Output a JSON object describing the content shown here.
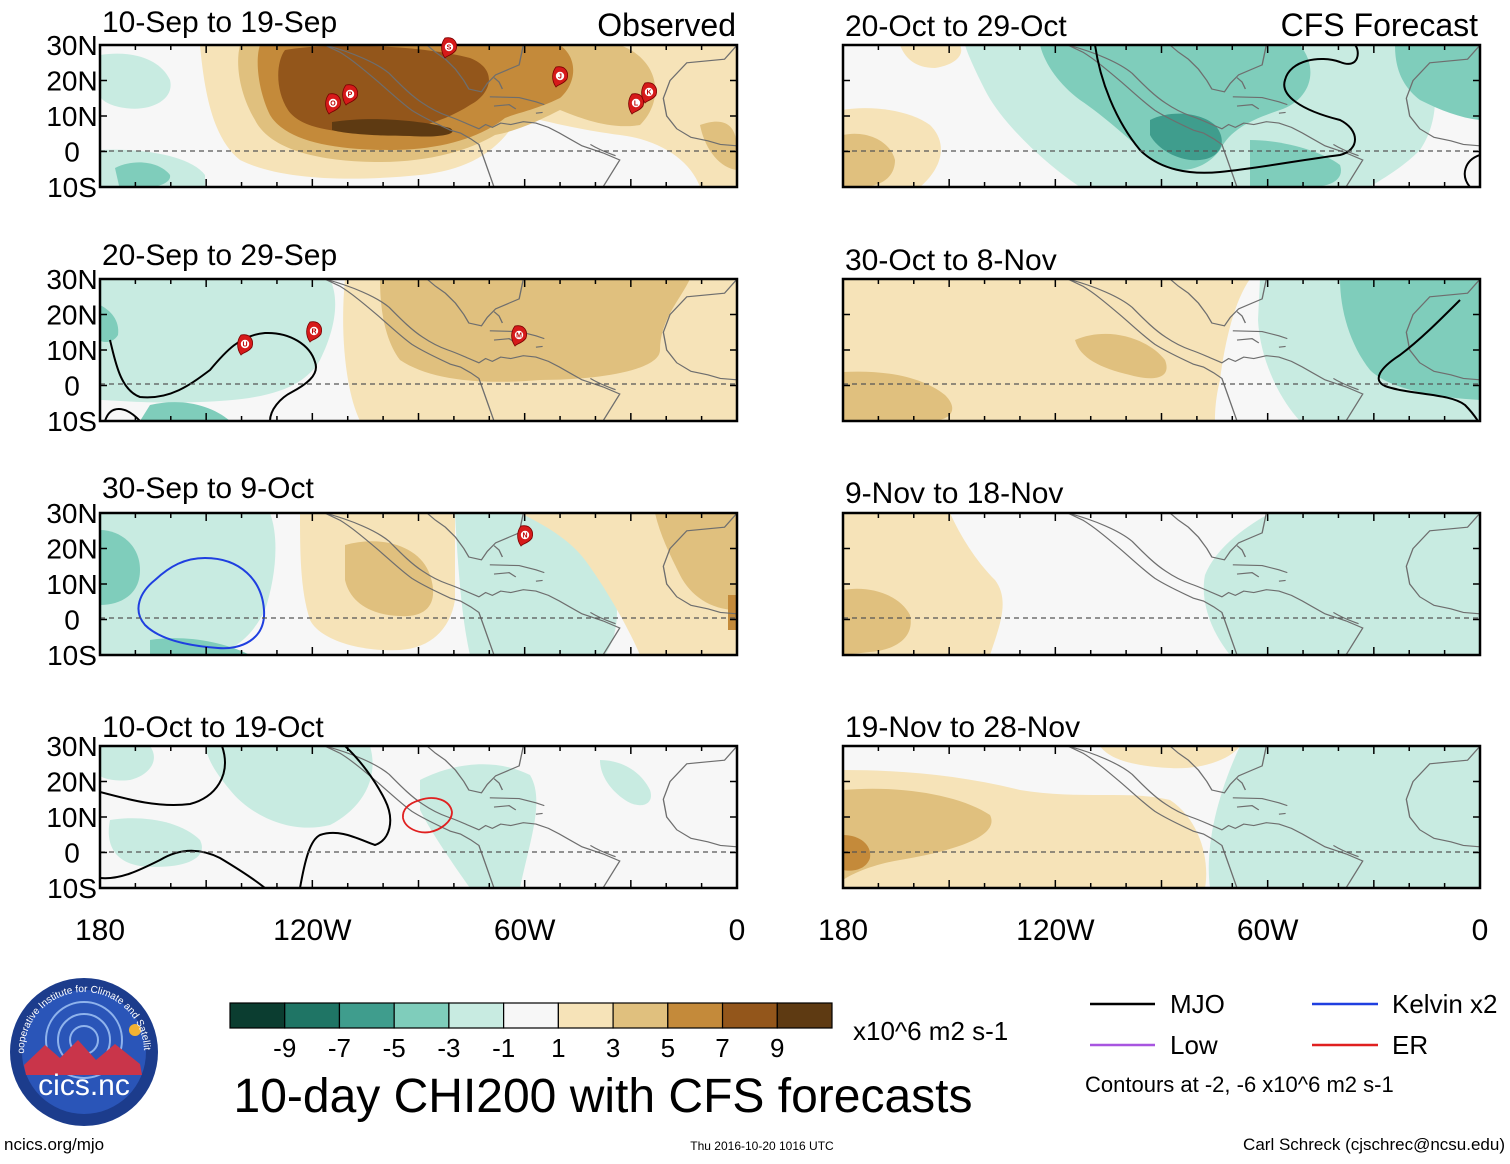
{
  "column_headers": {
    "observed": "Observed",
    "forecast": "CFS Forecast"
  },
  "panels": [
    {
      "id": "obs1",
      "column": "observed",
      "period": "10-Sep to 19-Sep",
      "storms": [
        "O",
        "P",
        "J",
        "L",
        "K",
        "S"
      ]
    },
    {
      "id": "obs2",
      "column": "observed",
      "period": "20-Sep to 29-Sep",
      "storms": [
        "U",
        "R",
        "M"
      ]
    },
    {
      "id": "obs3",
      "column": "observed",
      "period": "30-Sep to 9-Oct",
      "storms": [
        "N"
      ]
    },
    {
      "id": "obs4",
      "column": "observed",
      "period": "10-Oct to 19-Oct",
      "storms": []
    },
    {
      "id": "fc1",
      "column": "forecast",
      "period": "20-Oct to 29-Oct",
      "storms": []
    },
    {
      "id": "fc2",
      "column": "forecast",
      "period": "30-Oct to 8-Nov",
      "storms": []
    },
    {
      "id": "fc3",
      "column": "forecast",
      "period": "9-Nov to 18-Nov",
      "storms": []
    },
    {
      "id": "fc4",
      "column": "forecast",
      "period": "19-Nov to 28-Nov",
      "storms": []
    }
  ],
  "axes": {
    "lat_labels": [
      "30N",
      "20N",
      "10N",
      "0",
      "10S"
    ],
    "lon_labels": [
      "180",
      "120W",
      "60W",
      "0"
    ]
  },
  "colorbar": {
    "colors": [
      "#0b3d30",
      "#1f7565",
      "#3f9d8d",
      "#7fcdbb",
      "#c8ebe1",
      "#f7f7f7",
      "#f6e3b8",
      "#e0c07e",
      "#c48a3a",
      "#93561b",
      "#5e3a12"
    ],
    "labels": [
      "-9",
      "-7",
      "-5",
      "-3",
      "-1",
      "1",
      "3",
      "5",
      "7",
      "9"
    ],
    "units": "x10^6 m2 s-1"
  },
  "legend": {
    "items": [
      {
        "label": "MJO",
        "color": "#000000"
      },
      {
        "label": "Kelvin x2",
        "color": "#1f3fe0"
      },
      {
        "label": "Low",
        "color": "#a855e0"
      },
      {
        "label": "ER",
        "color": "#e02020"
      }
    ],
    "note": "Contours at -2, -6 x10^6 m2 s-1"
  },
  "title": "10-day CHI200 with CFS forecasts",
  "logo": {
    "text": "cics.nc",
    "ring_text": "Cooperative Institute for Climate and Satellites"
  },
  "footer": {
    "left": "ncics.org/mjo",
    "center": "Thu 2016-10-20 1016 UTC",
    "right": "Carl Schreck (cjschrec@ncsu.edu)"
  }
}
